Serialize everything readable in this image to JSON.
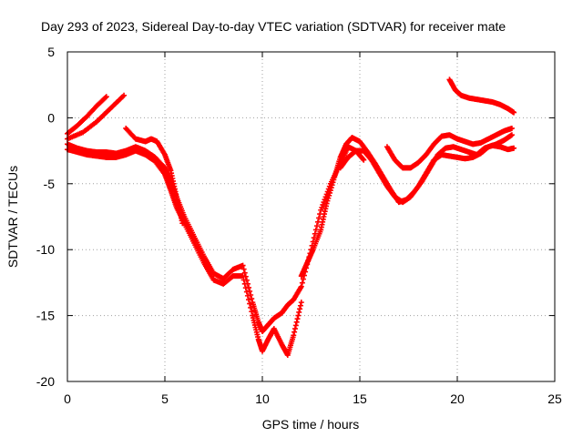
{
  "chart_data": {
    "type": "scatter",
    "title": "Day 293 of 2023, Sidereal Day-to-day VTEC variation (SDTVAR) for receiver mate",
    "xlabel": "GPS time / hours",
    "ylabel": "SDTVAR / TECUs",
    "xlim": [
      0,
      25
    ],
    "ylim": [
      -20,
      5
    ],
    "xticks": [
      0,
      5,
      10,
      15,
      20,
      25
    ],
    "yticks": [
      -20,
      -15,
      -10,
      -5,
      0,
      5
    ],
    "xtick_labels": [
      "0",
      "5",
      "10",
      "15",
      "20",
      "25"
    ],
    "ytick_labels": [
      "-20",
      "-15",
      "-10",
      "-5",
      "0",
      "5"
    ],
    "grid": true,
    "marker": "plus",
    "series": [
      {
        "name": "SDTVAR",
        "color": "#ff0000",
        "tracks": [
          {
            "x": [
              0.0,
              0.5,
              1.0,
              1.5,
              2.0
            ],
            "y": [
              -1.2,
              -0.6,
              0.1,
              0.9,
              1.6
            ]
          },
          {
            "x": [
              0.0,
              0.8,
              1.5,
              2.2,
              2.9
            ],
            "y": [
              -1.6,
              -1.1,
              -0.3,
              0.7,
              1.7
            ]
          },
          {
            "x": [
              0.0,
              0.5,
              1.0,
              1.5,
              2.0,
              2.5,
              3.0,
              3.5,
              4.0,
              4.5,
              5.0,
              5.3,
              5.6,
              6.0,
              6.5,
              7.0,
              7.5,
              8.0,
              8.5,
              9.0,
              9.5,
              9.8,
              10.0,
              10.3,
              10.6,
              11.0,
              11.3,
              11.6,
              12.0,
              12.5,
              13.0,
              13.5,
              14.0,
              14.4,
              14.8,
              15.2
            ],
            "y": [
              -2.0,
              -2.3,
              -2.5,
              -2.6,
              -2.6,
              -2.7,
              -2.5,
              -2.2,
              -2.5,
              -3.0,
              -3.8,
              -4.8,
              -6.0,
              -7.5,
              -9.0,
              -10.5,
              -11.8,
              -12.2,
              -11.5,
              -11.2,
              -14.0,
              -15.5,
              -16.2,
              -15.7,
              -15.2,
              -14.8,
              -14.2,
              -13.8,
              -12.8,
              -10.0,
              -7.0,
              -5.0,
              -3.5,
              -2.2,
              -2.5,
              -3.2
            ]
          },
          {
            "x": [
              0.0,
              0.5,
              1.0,
              1.5,
              2.0,
              2.5,
              3.0,
              3.5,
              4.0,
              4.5,
              5.0,
              5.3,
              5.6,
              6.0,
              6.5,
              7.0,
              7.5,
              8.0,
              8.5,
              9.0,
              9.5,
              9.8,
              10.0,
              10.3,
              10.6,
              11.0,
              11.3,
              11.6,
              12.0
            ],
            "y": [
              -2.4,
              -2.6,
              -2.8,
              -2.9,
              -3.0,
              -3.0,
              -2.8,
              -2.5,
              -2.8,
              -3.3,
              -4.3,
              -5.5,
              -6.8,
              -8.0,
              -9.5,
              -11.0,
              -12.3,
              -12.6,
              -12.0,
              -12.0,
              -15.0,
              -16.8,
              -17.7,
              -16.8,
              -16.0,
              -17.2,
              -18.0,
              -16.5,
              -14.0
            ]
          },
          {
            "x": [
              3.0,
              3.5,
              4.0,
              4.3,
              4.6,
              5.0,
              5.3,
              5.6,
              5.9
            ],
            "y": [
              -0.8,
              -1.6,
              -1.8,
              -1.6,
              -1.8,
              -2.8,
              -4.0,
              -6.0,
              -8.0
            ]
          },
          {
            "x": [
              12.0,
              12.3,
              12.6,
              13.0,
              13.3,
              13.7,
              14.0,
              14.3,
              14.6,
              15.0,
              15.4,
              15.8,
              16.2,
              16.6,
              17.0,
              17.4,
              17.8,
              18.2,
              18.6,
              19.0,
              19.4,
              19.8,
              20.2,
              20.6,
              21.0,
              21.4,
              21.8,
              22.2,
              22.6,
              22.9
            ],
            "y": [
              -12.0,
              -11.0,
              -10.0,
              -8.5,
              -6.5,
              -4.5,
              -3.0,
              -2.0,
              -1.5,
              -1.8,
              -2.6,
              -3.5,
              -4.5,
              -5.5,
              -6.4,
              -6.2,
              -5.6,
              -4.8,
              -3.8,
              -2.8,
              -2.3,
              -2.2,
              -2.4,
              -2.6,
              -2.8,
              -2.3,
              -2.1,
              -2.2,
              -2.4,
              -2.3
            ]
          },
          {
            "x": [
              14.0,
              14.4,
              14.8,
              15.2,
              15.6,
              16.0,
              16.4,
              16.8,
              17.2,
              17.6,
              18.0,
              18.4,
              18.8,
              19.2,
              19.6,
              20.0,
              20.4,
              20.8,
              21.2,
              21.6,
              22.0,
              22.4,
              22.8
            ],
            "y": [
              -3.8,
              -3.0,
              -2.5,
              -2.5,
              -3.2,
              -4.2,
              -5.2,
              -6.0,
              -6.4,
              -6.0,
              -5.2,
              -4.2,
              -3.2,
              -2.8,
              -2.9,
              -3.0,
              -3.1,
              -3.0,
              -2.7,
              -2.2,
              -2.0,
              -1.7,
              -1.3
            ]
          },
          {
            "x": [
              16.4,
              16.8,
              17.2,
              17.6,
              18.0,
              18.4,
              18.8,
              19.2,
              19.6,
              20.0,
              20.4,
              20.8,
              21.2,
              21.6,
              22.0,
              22.4,
              22.8
            ],
            "y": [
              -2.2,
              -3.2,
              -3.8,
              -3.8,
              -3.4,
              -2.8,
              -2.0,
              -1.4,
              -1.3,
              -1.6,
              -1.8,
              -2.0,
              -1.9,
              -1.6,
              -1.3,
              -1.0,
              -0.8
            ]
          },
          {
            "x": [
              19.6,
              19.9,
              20.2,
              20.6,
              21.0,
              21.4,
              21.8,
              22.2,
              22.6,
              22.9
            ],
            "y": [
              2.9,
              2.1,
              1.7,
              1.5,
              1.4,
              1.3,
              1.2,
              1.0,
              0.7,
              0.4
            ]
          }
        ]
      }
    ]
  }
}
